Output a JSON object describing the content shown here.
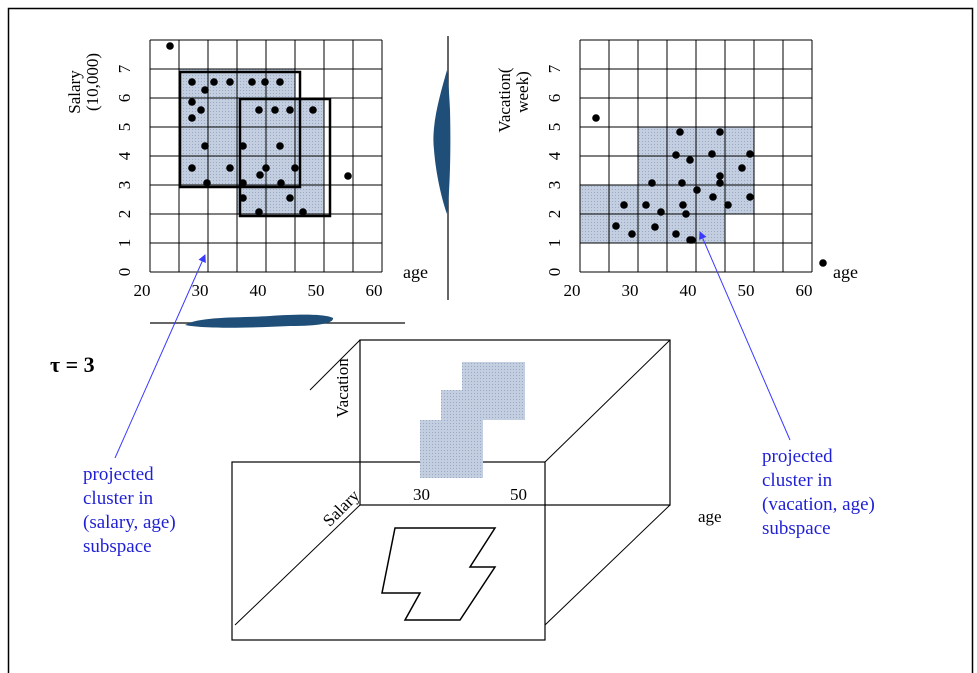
{
  "tau_label": "τ = 3",
  "left_plot": {
    "y_axis_label_line1": "Salary",
    "y_axis_label_line2": "(10,000)",
    "x_axis_label": "age",
    "x_ticks": [
      "20",
      "30",
      "40",
      "50",
      "60"
    ],
    "y_ticks": [
      "0",
      "1",
      "2",
      "3",
      "4",
      "5",
      "6",
      "7"
    ]
  },
  "right_plot": {
    "y_axis_label_line1": "Vacation(",
    "y_axis_label_line2": "week)",
    "x_axis_label": "age",
    "x_ticks": [
      "20",
      "30",
      "40",
      "50",
      "60"
    ],
    "y_ticks": [
      "0",
      "1",
      "2",
      "3",
      "4",
      "5",
      "6",
      "7"
    ]
  },
  "cube": {
    "vacation_label": "Vacation",
    "salary_label": "Salary",
    "age_label": "age",
    "tick_30": "30",
    "tick_50": "50"
  },
  "annotation_left": {
    "line1": "projected",
    "line2": "cluster in",
    "line3": "(salary, age)",
    "line4": "subspace"
  },
  "annotation_right": {
    "line1": "projected",
    "line2": "cluster in",
    "line3": "(vacation, age)",
    "line4": "subspace"
  },
  "colors": {
    "cluster_fill": "#c3cfe0",
    "projection_blob": "#1f4e79",
    "annotation_text": "#1f1fd6",
    "annotation_arrow": "#3a3aff"
  }
}
